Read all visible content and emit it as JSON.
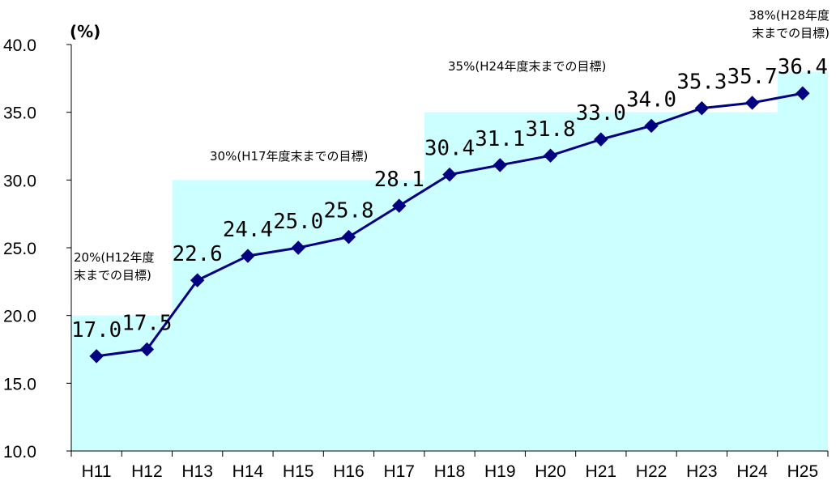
{
  "chart_data": {
    "type": "line",
    "unit_label": "(%)",
    "categories": [
      "H11",
      "H12",
      "H13",
      "H14",
      "H15",
      "H16",
      "H17",
      "H18",
      "H19",
      "H20",
      "H21",
      "H22",
      "H23",
      "H24",
      "H25"
    ],
    "values": [
      17.0,
      17.5,
      22.6,
      24.4,
      25.0,
      25.8,
      28.1,
      30.4,
      31.1,
      31.8,
      33.0,
      34.0,
      35.3,
      35.7,
      36.4
    ],
    "value_labels": [
      "17.0",
      "17.5",
      "22.6",
      "24.4",
      "25.0",
      "25.8",
      "28.1",
      "30.4",
      "31.1",
      "31.8",
      "33.0",
      "34.0",
      "35.3",
      "35.7",
      "36.4"
    ],
    "ylim": [
      10,
      40
    ],
    "yticks": [
      "10.0",
      "15.0",
      "20.0",
      "25.0",
      "30.0",
      "35.0",
      "40.0"
    ],
    "line_color": "#000080",
    "target_fill_color": "#CCFFFF",
    "targets": [
      {
        "value": 20,
        "from_index": 0,
        "to_index": 1,
        "label_lines": [
          "20%(H12年度",
          "末までの目標)"
        ]
      },
      {
        "value": 30,
        "from_index": 2,
        "to_index": 6,
        "label_lines": [
          "30%(H17年度末までの目標)"
        ]
      },
      {
        "value": 35,
        "from_index": 7,
        "to_index": 13,
        "label_lines": [
          "35%(H24年度末までの目標)"
        ]
      },
      {
        "value": 38,
        "from_index": 14,
        "to_index": 14,
        "label_lines": [
          "38%(H28年度",
          "末までの目標)"
        ]
      }
    ],
    "grid": false,
    "legend": "none"
  }
}
